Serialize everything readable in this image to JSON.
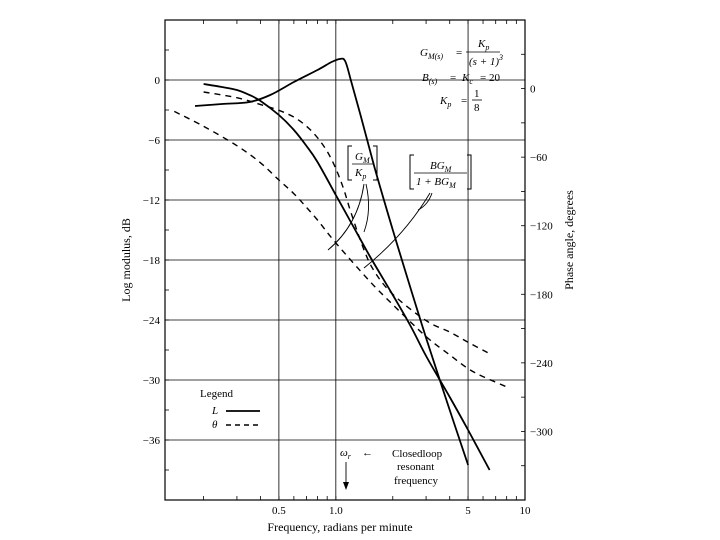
{
  "chart_data": {
    "type": "line",
    "xlabel": "Frequency, radians per minute",
    "ylabel_left": "Log modulus, dB",
    "ylabel_right": "Phase angle, degrees",
    "x_scale": "log",
    "xlim": [
      0.125,
      10
    ],
    "ylim_left": [
      -42,
      6
    ],
    "ylim_right": [
      -360,
      60
    ],
    "x_ticks": [
      {
        "value": 0.5,
        "label": "0.5"
      },
      {
        "value": 1.0,
        "label": "1.0"
      },
      {
        "value": 5,
        "label": "5"
      },
      {
        "value": 10,
        "label": "10"
      }
    ],
    "y_ticks_left": [
      {
        "value": 0,
        "label": "0"
      },
      {
        "value": -6,
        "label": "−6"
      },
      {
        "value": -12,
        "label": "−12"
      },
      {
        "value": -18,
        "label": "−18"
      },
      {
        "value": -24,
        "label": "−24"
      },
      {
        "value": -30,
        "label": "−30"
      },
      {
        "value": -36,
        "label": "−36"
      }
    ],
    "y_ticks_right": [
      {
        "value": 0,
        "label": "0"
      },
      {
        "value": -60,
        "label": "−60"
      },
      {
        "value": -120,
        "label": "−120"
      },
      {
        "value": -180,
        "label": "−180"
      },
      {
        "value": -240,
        "label": "−240"
      },
      {
        "value": -300,
        "label": "−300"
      }
    ],
    "grid": true,
    "legend": {
      "title": "Legend",
      "placement": "bottom-left",
      "entries": [
        {
          "symbol": "L",
          "style": "solid"
        },
        {
          "symbol": "θ",
          "style": "dashed"
        }
      ]
    },
    "series": [
      {
        "curve": "GM/Kp",
        "quantity": "L",
        "axis": "left",
        "style": "solid",
        "x": [
          0.2,
          0.25,
          0.3,
          0.35,
          0.4,
          0.5,
          0.6,
          0.7,
          0.8,
          1.0,
          1.2,
          1.5,
          2.0,
          2.5,
          3.0,
          4.0,
          5.0,
          6.5
        ],
        "y": [
          -0.4,
          -0.7,
          -1.0,
          -1.5,
          -2.1,
          -3.5,
          -5.0,
          -6.6,
          -8.2,
          -11.5,
          -14.2,
          -17.5,
          -21.5,
          -24.7,
          -27.6,
          -31.7,
          -35.0,
          -39.0
        ]
      },
      {
        "curve": "BGM/(1+BGM)",
        "quantity": "L",
        "axis": "left",
        "style": "solid",
        "x": [
          0.18,
          0.25,
          0.35,
          0.45,
          0.6,
          0.8,
          0.95,
          1.05,
          1.12,
          1.2,
          1.35,
          1.6,
          2.0,
          2.5,
          3.0,
          4.0,
          5.0
        ],
        "y": [
          -2.6,
          -2.4,
          -2.2,
          -1.5,
          -0.2,
          1.0,
          1.8,
          2.1,
          1.9,
          0.0,
          -3.5,
          -8.7,
          -15.0,
          -21.0,
          -25.8,
          -33.0,
          -38.5
        ]
      },
      {
        "curve": "GM/Kp",
        "quantity": "θ",
        "axis": "right",
        "style": "dashed",
        "x": [
          0.14,
          0.2,
          0.3,
          0.4,
          0.5,
          0.6,
          0.7,
          0.8,
          1.0,
          1.5,
          2.0,
          3.0,
          4.0,
          5.0,
          6.0,
          8.0
        ],
        "y": [
          -20,
          -33,
          -50,
          -65,
          -80,
          -92,
          -104,
          -115,
          -135,
          -168,
          -189,
          -217,
          -233,
          -245,
          -252,
          -261
        ]
      },
      {
        "curve": "BGM/(1+BGM)",
        "quantity": "θ",
        "axis": "right",
        "style": "dashed",
        "x": [
          0.2,
          0.3,
          0.4,
          0.5,
          0.6,
          0.7,
          0.8,
          0.9,
          1.0,
          1.1,
          1.2,
          1.4,
          1.6,
          2.0,
          3.0,
          4.0,
          5.0,
          6.5
        ],
        "y": [
          -3,
          -8,
          -14,
          -19,
          -25,
          -33,
          -43,
          -55,
          -70,
          -88,
          -108,
          -140,
          -160,
          -180,
          -203,
          -213,
          -222,
          -232
        ]
      }
    ],
    "annotations": {
      "transfer_function": {
        "lhs": "G",
        "lhs_sub": "M(s)",
        "eq": "=",
        "num": "K",
        "num_sub": "p",
        "den": "(s + 1)",
        "den_exp": "3"
      },
      "feedback": {
        "lhs": "B",
        "lhs_sub": "(s)",
        "eq": "=",
        "mid": "K",
        "mid_sub": "c",
        "rhs": "= 20"
      },
      "gain": {
        "lhs": "K",
        "lhs_sub": "p",
        "eq": "=",
        "num": "1",
        "den": "8"
      },
      "open_loop_label": {
        "num": "G",
        "num_sub": "M",
        "den": "K",
        "den_sub": "p"
      },
      "closed_loop_label": {
        "num": "BG",
        "num_sub": "M",
        "den_a": "1 + BG",
        "den_sub": "M"
      },
      "resonant": {
        "symbol": "ω",
        "symbol_sub": "r",
        "arrow": "←",
        "line1": "Closedloop",
        "line2": "resonant",
        "line3": "frequency",
        "x": 1.0
      }
    }
  }
}
